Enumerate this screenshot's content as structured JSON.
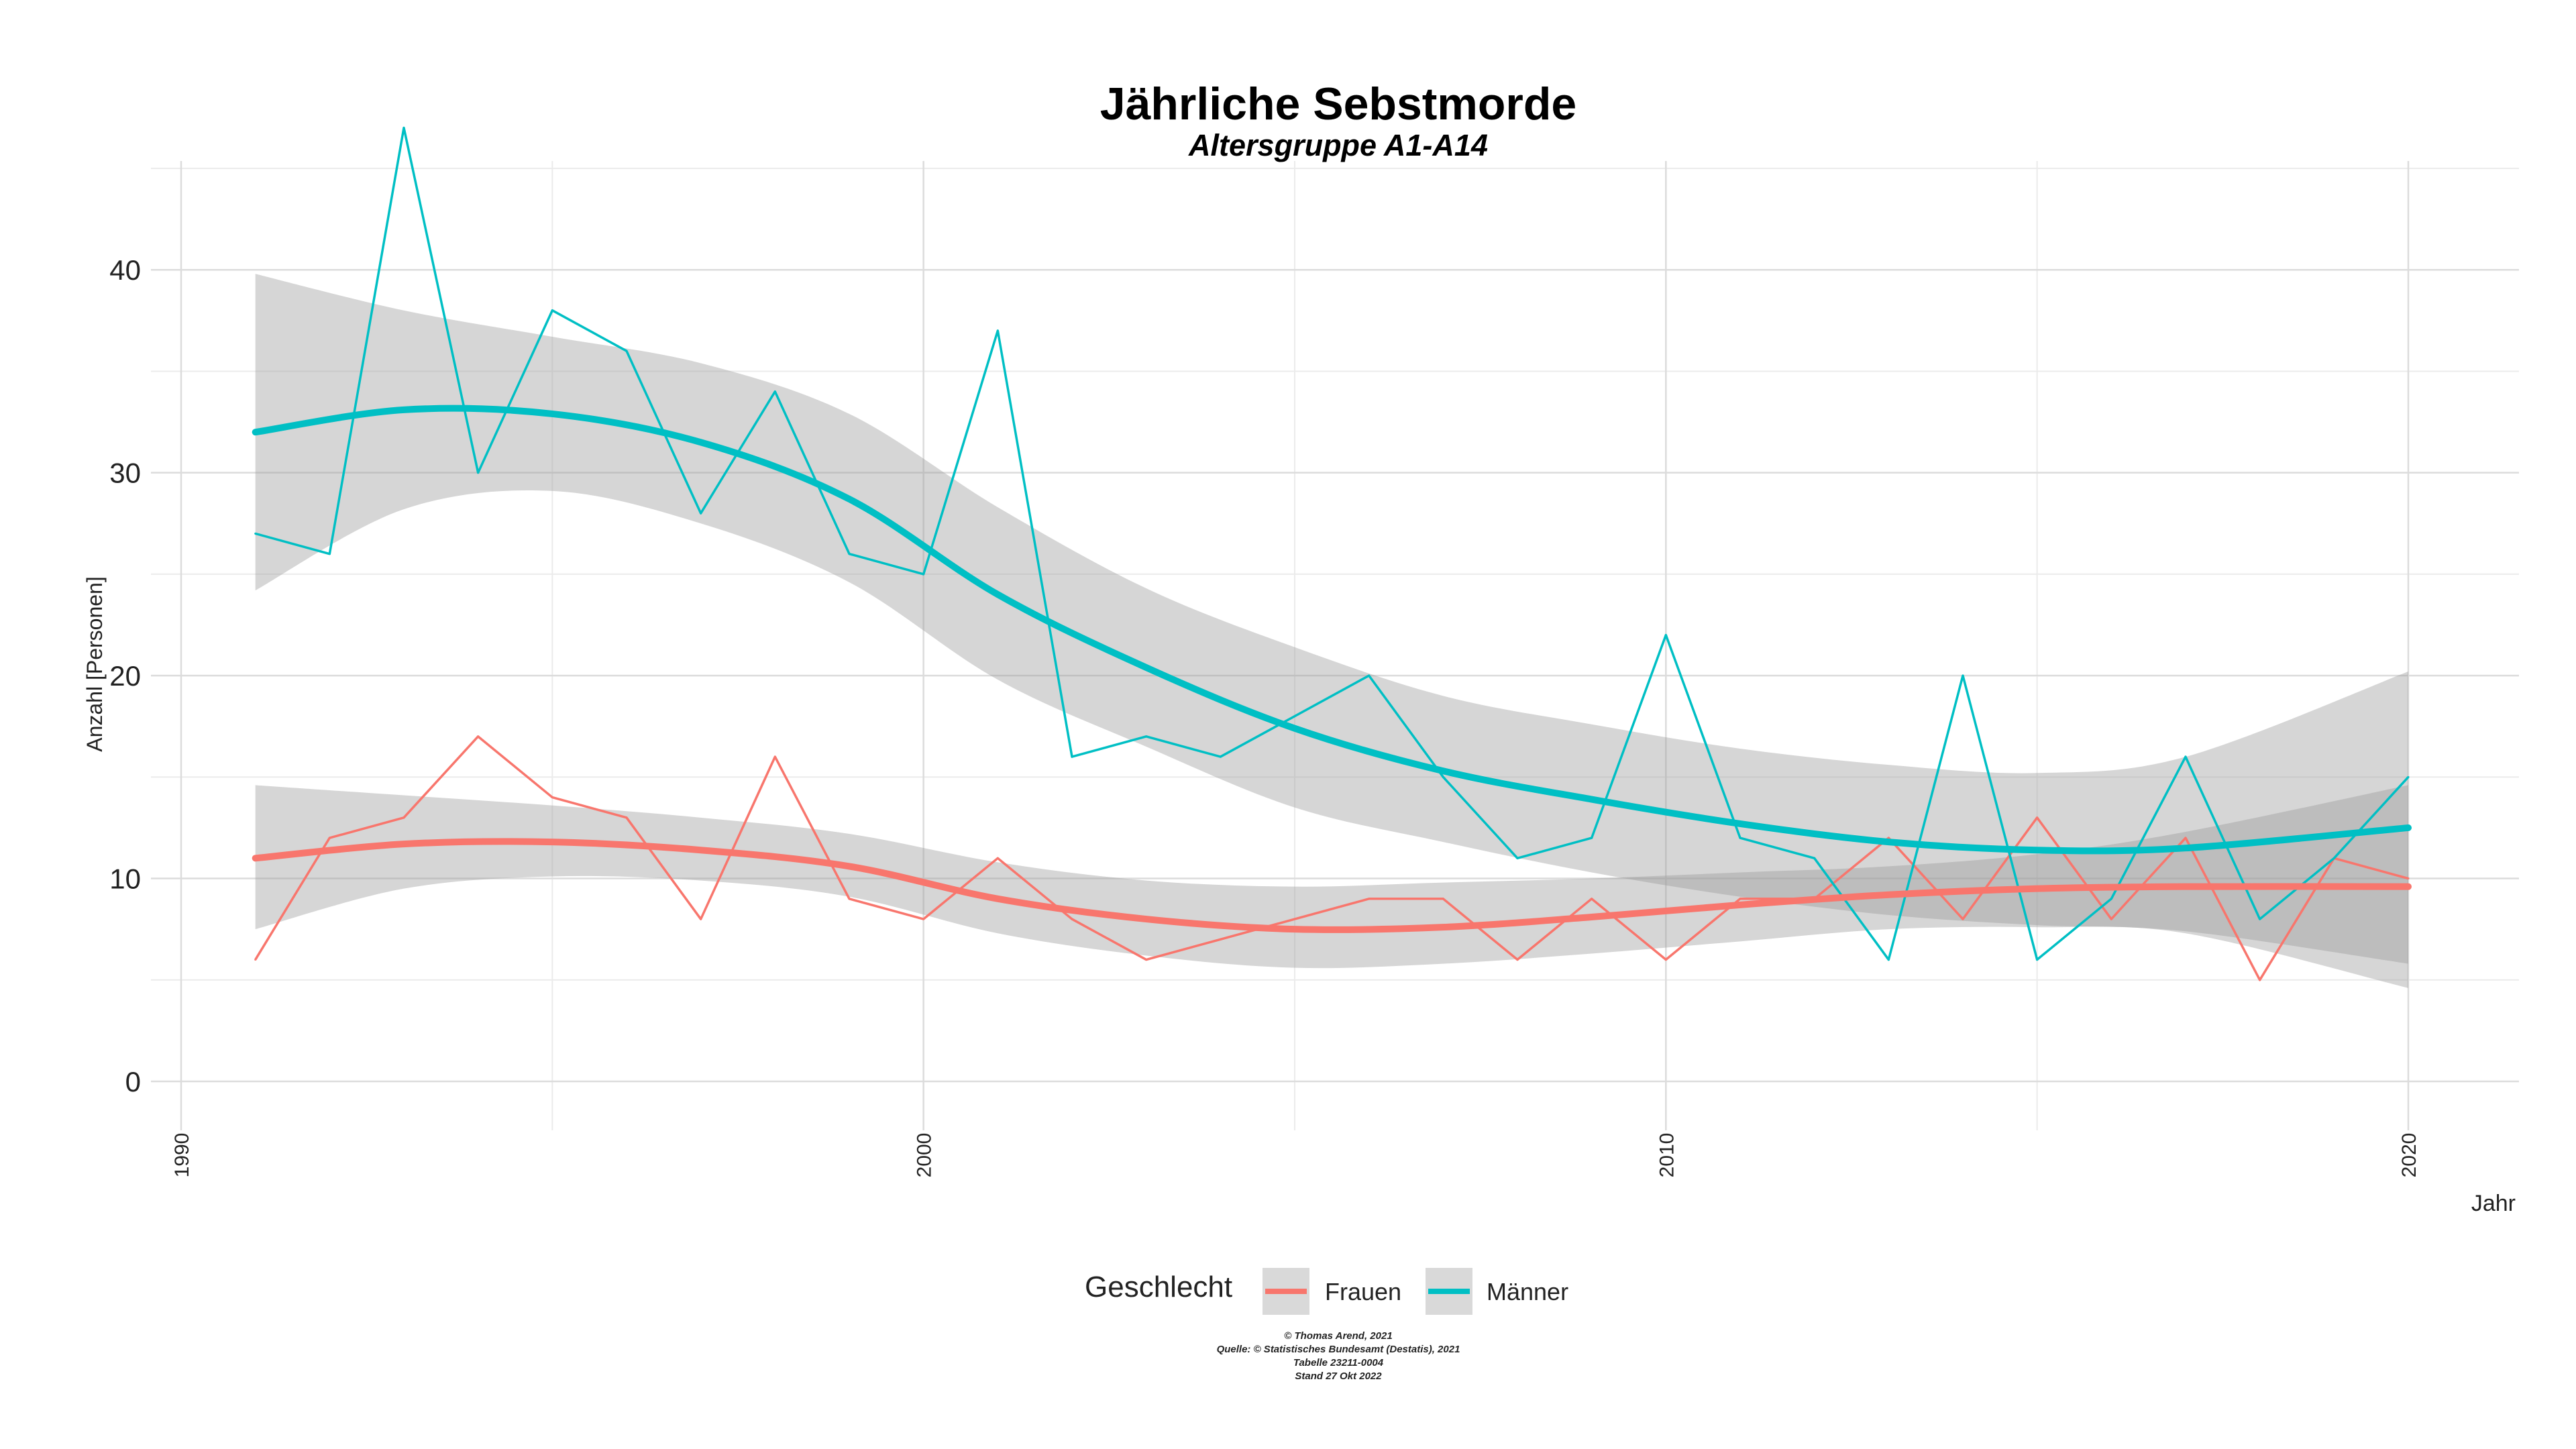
{
  "chart_data": {
    "type": "line",
    "title": "Jährliche Sebstmorde",
    "subtitle": "Altersgruppe A1-A14",
    "xlabel": "Jahr",
    "ylabel": "Anzahl [Personen]",
    "xlim": [
      1990,
      2020
    ],
    "ylim": [
      0,
      45
    ],
    "x_ticks": [
      "1990",
      "2000",
      "2010",
      "2020"
    ],
    "y_ticks": [
      "0",
      "10",
      "20",
      "30",
      "40"
    ],
    "grid": true,
    "legend_title": "Geschlecht",
    "legend_position": "bottom",
    "x": [
      1991,
      1992,
      1993,
      1994,
      1995,
      1996,
      1997,
      1998,
      1999,
      2000,
      2001,
      2002,
      2003,
      2004,
      2005,
      2006,
      2007,
      2008,
      2009,
      2010,
      2011,
      2012,
      2013,
      2014,
      2015,
      2016,
      2017,
      2018,
      2019,
      2020
    ],
    "series": [
      {
        "name": "Frauen",
        "color": "#F8766D",
        "values": [
          6,
          12,
          13,
          17,
          14,
          13,
          8,
          16,
          9,
          8,
          11,
          8,
          6,
          7,
          8,
          9,
          9,
          6,
          9,
          6,
          9,
          9,
          12,
          8,
          13,
          8,
          12,
          5,
          11,
          10
        ],
        "smooth_x": [
          1991,
          1993,
          1995,
          1997,
          1999,
          2001,
          2003,
          2005,
          2007,
          2009,
          2011,
          2013,
          2015,
          2017,
          2020
        ],
        "smooth": [
          11.0,
          11.7,
          11.8,
          11.4,
          10.6,
          9.0,
          8.0,
          7.5,
          7.6,
          8.1,
          8.7,
          9.2,
          9.5,
          9.6,
          9.6
        ],
        "smooth_lower": [
          7.5,
          9.5,
          10.1,
          9.9,
          9.1,
          7.3,
          6.2,
          5.6,
          5.8,
          6.3,
          6.9,
          7.5,
          7.6,
          7.3,
          4.6
        ],
        "smooth_upper": [
          14.6,
          14.1,
          13.6,
          13.0,
          12.2,
          10.8,
          9.9,
          9.6,
          9.8,
          10.0,
          10.3,
          10.6,
          11.2,
          12.3,
          14.6
        ]
      },
      {
        "name": "Männer",
        "color": "#00BFC4",
        "values": [
          27,
          26,
          47,
          30,
          38,
          36,
          28,
          34,
          26,
          25,
          37,
          16,
          17,
          16,
          18,
          20,
          15,
          11,
          12,
          22,
          12,
          11,
          6,
          20,
          6,
          9,
          16,
          8,
          11,
          15
        ],
        "smooth_x": [
          1991,
          1993,
          1995,
          1997,
          1999,
          2001,
          2003,
          2005,
          2007,
          2009,
          2011,
          2013,
          2015,
          2017,
          2020
        ],
        "smooth": [
          32.0,
          33.1,
          32.9,
          31.5,
          28.7,
          24.0,
          20.4,
          17.4,
          15.3,
          13.9,
          12.7,
          11.8,
          11.4,
          11.5,
          12.5
        ],
        "smooth_lower": [
          24.2,
          28.2,
          29.1,
          27.5,
          24.6,
          19.8,
          16.5,
          13.5,
          11.8,
          10.3,
          9.1,
          8.2,
          7.7,
          7.4,
          5.8
        ],
        "smooth_upper": [
          39.8,
          38.0,
          36.7,
          35.4,
          32.9,
          28.3,
          24.3,
          21.4,
          19.0,
          17.6,
          16.4,
          15.6,
          15.2,
          16.0,
          20.2
        ]
      }
    ],
    "caption": [
      "© Thomas Arend, 2021",
      "Quelle: © Statistisches Bundesamt (Destatis), 2021",
      "Tabelle 23211-0004",
      "Stand 27 Okt 2022"
    ]
  }
}
